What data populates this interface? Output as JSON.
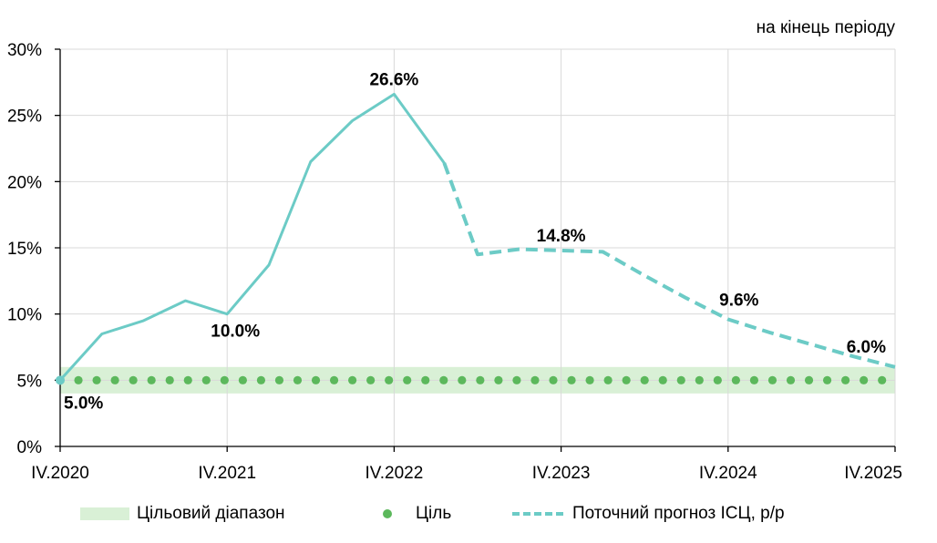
{
  "unit_note": "на кінець періоду",
  "legend": {
    "band": "Цільовий діапазон",
    "target": "Ціль",
    "forecast": "Поточний прогноз ІСЦ, р/р"
  },
  "colors": {
    "line": "#6ccbc6",
    "target_dots": "#5cb85c",
    "band": "#d9f0d6",
    "grid": "#d9d9d9"
  },
  "chart_data": {
    "type": "line",
    "y_tick_labels": [
      "0%",
      "5%",
      "10%",
      "15%",
      "20%",
      "25%",
      "30%"
    ],
    "ylim": [
      0,
      30
    ],
    "x_tick_labels": [
      "IV.2020",
      "IV.2021",
      "IV.2022",
      "IV.2023",
      "IV.2024",
      "IV.2025"
    ],
    "x_range_quarters": [
      0,
      20
    ],
    "grid": true,
    "legend_position": "bottom",
    "series": [
      {
        "name": "",
        "style": "solid",
        "x": [
          0,
          1,
          2,
          3,
          4,
          5,
          6,
          7,
          8,
          9.2
        ],
        "values": [
          5.0,
          8.5,
          9.5,
          11.0,
          10.0,
          13.7,
          21.5,
          24.6,
          26.6,
          21.4
        ]
      },
      {
        "name": "Поточний прогноз ІСЦ, р/р",
        "style": "dashed",
        "x": [
          9.2,
          10,
          11,
          12,
          13,
          14,
          15,
          16,
          17,
          18,
          19,
          20
        ],
        "values": [
          21.4,
          14.5,
          14.9,
          14.8,
          14.7,
          12.9,
          11.2,
          9.6,
          8.6,
          7.7,
          6.8,
          6.0
        ]
      }
    ],
    "target": {
      "name": "Ціль",
      "value": 5,
      "x_start": 0,
      "x_end": 19.75,
      "x_step": 0.4375
    },
    "target_band": {
      "name": "Цільовий діапазон",
      "low": 4,
      "high": 6
    },
    "data_labels": [
      {
        "text": "5.0%",
        "x": 0,
        "y": 5.0,
        "pos": "below-right"
      },
      {
        "text": "10.0%",
        "x": 4,
        "y": 10.0,
        "pos": "below"
      },
      {
        "text": "26.6%",
        "x": 8,
        "y": 26.6,
        "pos": "above"
      },
      {
        "text": "14.8%",
        "x": 12,
        "y": 14.8,
        "pos": "above"
      },
      {
        "text": "9.6%",
        "x": 16,
        "y": 9.6,
        "pos": "above-right"
      },
      {
        "text": "6.0%",
        "x": 20,
        "y": 6.0,
        "pos": "above-left"
      }
    ]
  }
}
